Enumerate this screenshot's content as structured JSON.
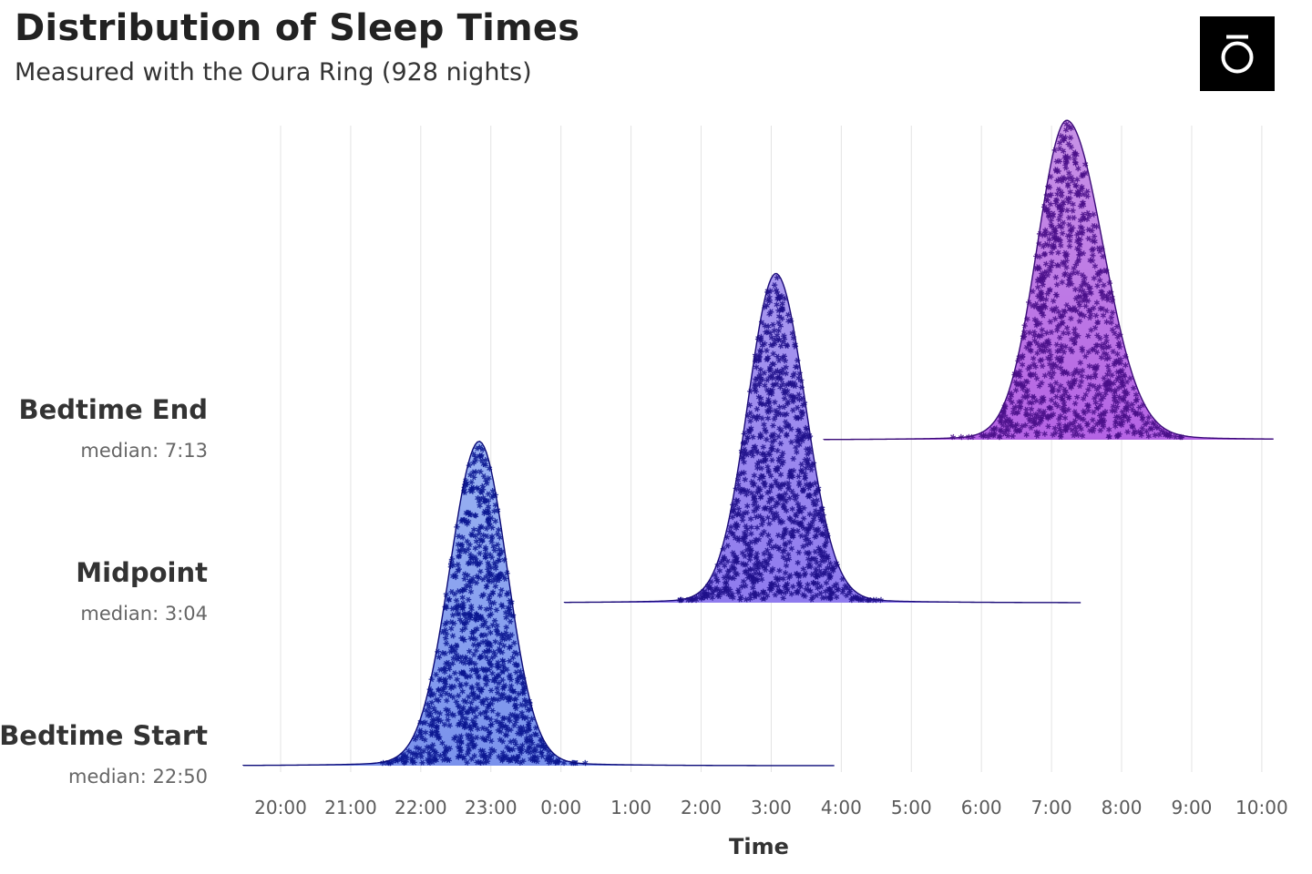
{
  "header": {
    "title": "Distribution of Sleep Times",
    "subtitle": "Measured with the Oura Ring (928 nights)"
  },
  "logo": {
    "icon": "oura-ring-logo-icon"
  },
  "chart_data": {
    "type": "ridgeline",
    "title": "Distribution of Sleep Times",
    "subtitle": "Measured with the Oura Ring (928 nights)",
    "xlabel": "Time",
    "ylabel": "",
    "x_ticks": [
      "20:00",
      "21:00",
      "22:00",
      "23:00",
      "0:00",
      "1:00",
      "2:00",
      "3:00",
      "4:00",
      "5:00",
      "6:00",
      "7:00",
      "8:00",
      "9:00",
      "10:00"
    ],
    "x_range": [
      "19:28",
      "10:10"
    ],
    "grid": "vertical",
    "n_nights": 928,
    "series": [
      {
        "name": "Bedtime Start",
        "median_label": "median: 22:50",
        "median": "22:50",
        "range": [
          "19:28",
          "3:54"
        ],
        "relative_peak_height": 0.66,
        "color_top": "#9ab2f2",
        "color_bottom": "#7a92ec",
        "line_color": "#0a0a78",
        "point_color": "#0b1690"
      },
      {
        "name": "Midpoint",
        "median_label": "median: 3:04",
        "median": "3:04",
        "range": "0:03–7:25",
        "relative_peak_height": 0.67,
        "color_top": "#a898ee",
        "color_bottom": "#8f7bee",
        "line_color": "#1a0a78",
        "point_color": "#1e0f8a"
      },
      {
        "name": "Bedtime End",
        "median_label": "median: 7:13",
        "median": "7:13",
        "range": "3:45–10:10",
        "relative_peak_height": 0.65,
        "color_top": "#c893e6",
        "color_bottom": "#b463e4",
        "line_color": "#3a0a78",
        "point_color": "#4a0f8a"
      }
    ]
  }
}
